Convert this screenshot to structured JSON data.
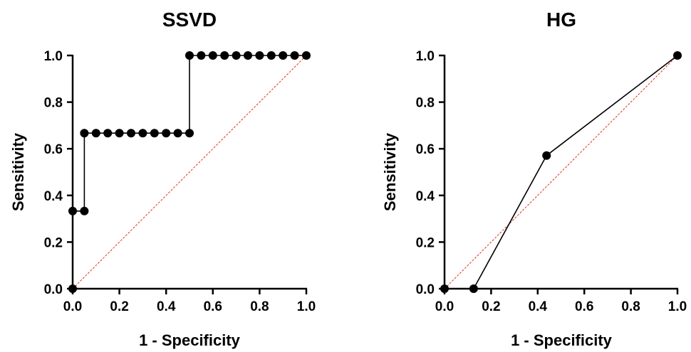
{
  "chart_data": [
    {
      "type": "line",
      "title": "SSVD",
      "xlabel": "1 - Specificity",
      "ylabel": "Sensitivity",
      "xlim": [
        0,
        1
      ],
      "ylim": [
        0,
        1
      ],
      "xticks": [
        "0.0",
        "0.2",
        "0.4",
        "0.6",
        "0.8",
        "1.0"
      ],
      "yticks": [
        "0.0",
        "0.2",
        "0.4",
        "0.6",
        "0.8",
        "1.0"
      ],
      "grid": false,
      "legend": "none",
      "line_color": "#000000",
      "reference_color": "#e0301e",
      "series": [
        {
          "x": [
            0.0,
            0.0,
            0.05,
            0.05,
            0.1,
            0.15,
            0.2,
            0.25,
            0.3,
            0.35,
            0.4,
            0.45,
            0.5,
            0.5,
            0.55,
            0.6,
            0.65,
            0.7,
            0.75,
            0.8,
            0.85,
            0.9,
            0.95,
            1.0
          ],
          "y": [
            0.0,
            0.333,
            0.333,
            0.667,
            0.667,
            0.667,
            0.667,
            0.667,
            0.667,
            0.667,
            0.667,
            0.667,
            0.667,
            1.0,
            1.0,
            1.0,
            1.0,
            1.0,
            1.0,
            1.0,
            1.0,
            1.0,
            1.0,
            1.0
          ]
        }
      ]
    },
    {
      "type": "line",
      "title": "HG",
      "xlabel": "1 - Specificity",
      "ylabel": "Sensitivity",
      "xlim": [
        0,
        1
      ],
      "ylim": [
        0,
        1
      ],
      "xticks": [
        "0.0",
        "0.2",
        "0.4",
        "0.6",
        "0.8",
        "1.0"
      ],
      "yticks": [
        "0.0",
        "0.2",
        "0.4",
        "0.6",
        "0.8",
        "1.0"
      ],
      "grid": false,
      "legend": "none",
      "line_color": "#000000",
      "reference_color": "#e0301e",
      "series": [
        {
          "x": [
            0.0,
            0.125,
            0.438,
            1.0
          ],
          "y": [
            0.0,
            0.0,
            0.571,
            1.0
          ]
        }
      ]
    }
  ]
}
